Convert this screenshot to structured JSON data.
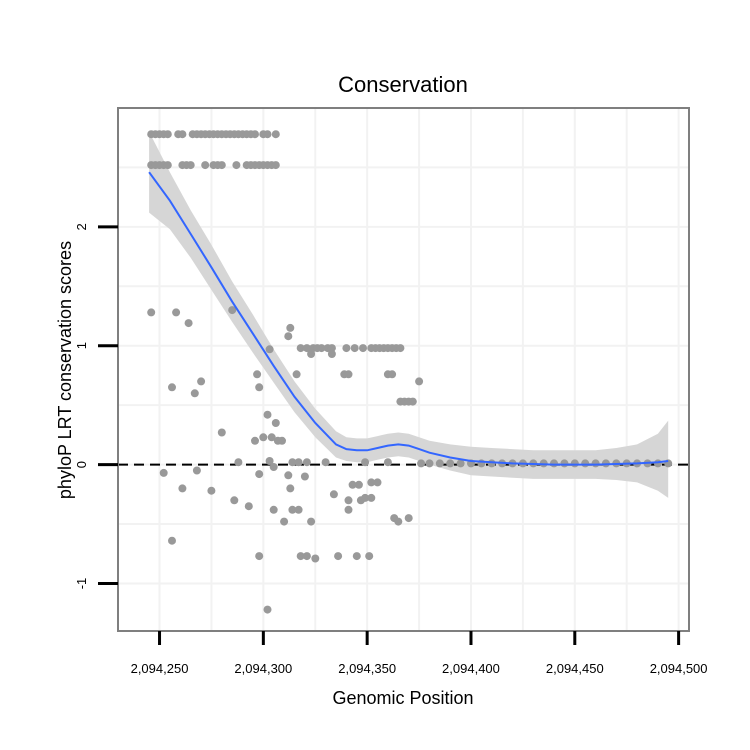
{
  "chart_data": {
    "type": "scatter",
    "title": "Conservation",
    "xlabel": "Genomic Position",
    "ylabel": "phyloP LRT conservation scores",
    "xlim": [
      2094230,
      2094505
    ],
    "ylim": [
      -1.4,
      3.0
    ],
    "x_ticks": [
      2094250,
      2094300,
      2094350,
      2094400,
      2094450,
      2094500
    ],
    "x_tick_labels": [
      "2,094,250",
      "2,094,300",
      "2,094,350",
      "2,094,400",
      "2,094,450",
      "2,094,500"
    ],
    "y_ticks": [
      -1,
      0,
      1,
      2
    ],
    "y_tick_labels": [
      "-1",
      "0",
      "1",
      "2"
    ],
    "grid": true,
    "reference_line": {
      "y": 0,
      "style": "dashed"
    },
    "colors": {
      "points": "#999999",
      "smooth": "#3366FF",
      "ribbon": "#d6d6d6",
      "panel_border": "#7f7f7f",
      "grid": "#f2f2f2"
    },
    "series": [
      {
        "name": "conservation scores",
        "kind": "points",
        "points": [
          [
            2094246,
            2.78
          ],
          [
            2094248,
            2.78
          ],
          [
            2094250,
            2.78
          ],
          [
            2094252,
            2.78
          ],
          [
            2094254,
            2.78
          ],
          [
            2094259,
            2.78
          ],
          [
            2094261,
            2.78
          ],
          [
            2094266,
            2.78
          ],
          [
            2094268,
            2.78
          ],
          [
            2094270,
            2.78
          ],
          [
            2094272,
            2.78
          ],
          [
            2094274,
            2.78
          ],
          [
            2094276,
            2.78
          ],
          [
            2094278,
            2.78
          ],
          [
            2094280,
            2.78
          ],
          [
            2094282,
            2.78
          ],
          [
            2094284,
            2.78
          ],
          [
            2094286,
            2.78
          ],
          [
            2094288,
            2.78
          ],
          [
            2094290,
            2.78
          ],
          [
            2094292,
            2.78
          ],
          [
            2094294,
            2.78
          ],
          [
            2094296,
            2.78
          ],
          [
            2094300,
            2.78
          ],
          [
            2094302,
            2.78
          ],
          [
            2094306,
            2.78
          ],
          [
            2094246,
            2.52
          ],
          [
            2094248,
            2.52
          ],
          [
            2094250,
            2.52
          ],
          [
            2094252,
            2.52
          ],
          [
            2094254,
            2.52
          ],
          [
            2094261,
            2.52
          ],
          [
            2094263,
            2.52
          ],
          [
            2094265,
            2.52
          ],
          [
            2094272,
            2.52
          ],
          [
            2094276,
            2.52
          ],
          [
            2094278,
            2.52
          ],
          [
            2094280,
            2.52
          ],
          [
            2094287,
            2.52
          ],
          [
            2094292,
            2.52
          ],
          [
            2094294,
            2.52
          ],
          [
            2094296,
            2.52
          ],
          [
            2094298,
            2.52
          ],
          [
            2094300,
            2.52
          ],
          [
            2094302,
            2.52
          ],
          [
            2094304,
            2.52
          ],
          [
            2094306,
            2.52
          ],
          [
            2094246,
            1.28
          ],
          [
            2094258,
            1.28
          ],
          [
            2094264,
            1.19
          ],
          [
            2094285,
            1.3
          ],
          [
            2094313,
            1.15
          ],
          [
            2094312,
            1.08
          ],
          [
            2094303,
            0.97
          ],
          [
            2094318,
            0.98
          ],
          [
            2094321,
            0.98
          ],
          [
            2094324,
            0.98
          ],
          [
            2094326,
            0.98
          ],
          [
            2094328,
            0.98
          ],
          [
            2094331,
            0.98
          ],
          [
            2094333,
            0.98
          ],
          [
            2094333,
            0.93
          ],
          [
            2094340,
            0.98
          ],
          [
            2094344,
            0.98
          ],
          [
            2094348,
            0.98
          ],
          [
            2094352,
            0.98
          ],
          [
            2094354,
            0.98
          ],
          [
            2094356,
            0.98
          ],
          [
            2094358,
            0.98
          ],
          [
            2094360,
            0.98
          ],
          [
            2094362,
            0.98
          ],
          [
            2094364,
            0.98
          ],
          [
            2094366,
            0.98
          ],
          [
            2094323,
            0.93
          ],
          [
            2094339,
            0.76
          ],
          [
            2094341,
            0.76
          ],
          [
            2094316,
            0.76
          ],
          [
            2094297,
            0.76
          ],
          [
            2094360,
            0.76
          ],
          [
            2094362,
            0.76
          ],
          [
            2094375,
            0.7
          ],
          [
            2094270,
            0.7
          ],
          [
            2094256,
            0.65
          ],
          [
            2094298,
            0.65
          ],
          [
            2094267,
            0.6
          ],
          [
            2094366,
            0.53
          ],
          [
            2094368,
            0.53
          ],
          [
            2094370,
            0.53
          ],
          [
            2094372,
            0.53
          ],
          [
            2094302,
            0.42
          ],
          [
            2094306,
            0.35
          ],
          [
            2094280,
            0.27
          ],
          [
            2094300,
            0.23
          ],
          [
            2094304,
            0.23
          ],
          [
            2094307,
            0.2
          ],
          [
            2094309,
            0.2
          ],
          [
            2094296,
            0.2
          ],
          [
            2094303,
            0.03
          ],
          [
            2094314,
            0.02
          ],
          [
            2094317,
            0.02
          ],
          [
            2094321,
            0.02
          ],
          [
            2094330,
            0.02
          ],
          [
            2094349,
            0.02
          ],
          [
            2094360,
            0.02
          ],
          [
            2094288,
            0.02
          ],
          [
            2094268,
            -0.05
          ],
          [
            2094305,
            -0.02
          ],
          [
            2094252,
            -0.07
          ],
          [
            2094298,
            -0.08
          ],
          [
            2094312,
            -0.09
          ],
          [
            2094320,
            -0.1
          ],
          [
            2094343,
            -0.17
          ],
          [
            2094346,
            -0.17
          ],
          [
            2094352,
            -0.15
          ],
          [
            2094355,
            -0.15
          ],
          [
            2094261,
            -0.2
          ],
          [
            2094275,
            -0.22
          ],
          [
            2094313,
            -0.2
          ],
          [
            2094334,
            -0.25
          ],
          [
            2094341,
            -0.3
          ],
          [
            2094347,
            -0.3
          ],
          [
            2094349,
            -0.28
          ],
          [
            2094352,
            -0.28
          ],
          [
            2094286,
            -0.3
          ],
          [
            2094293,
            -0.35
          ],
          [
            2094305,
            -0.38
          ],
          [
            2094314,
            -0.38
          ],
          [
            2094317,
            -0.38
          ],
          [
            2094341,
            -0.38
          ],
          [
            2094363,
            -0.45
          ],
          [
            2094365,
            -0.48
          ],
          [
            2094370,
            -0.45
          ],
          [
            2094310,
            -0.48
          ],
          [
            2094323,
            -0.48
          ],
          [
            2094256,
            -0.64
          ],
          [
            2094298,
            -0.77
          ],
          [
            2094318,
            -0.77
          ],
          [
            2094321,
            -0.77
          ],
          [
            2094325,
            -0.79
          ],
          [
            2094336,
            -0.77
          ],
          [
            2094345,
            -0.77
          ],
          [
            2094351,
            -0.77
          ],
          [
            2094302,
            -1.22
          ],
          [
            2094376,
            0.01
          ],
          [
            2094380,
            0.01
          ],
          [
            2094385,
            0.01
          ],
          [
            2094390,
            0.01
          ],
          [
            2094395,
            0.01
          ],
          [
            2094400,
            0.01
          ],
          [
            2094405,
            0.01
          ],
          [
            2094410,
            0.01
          ],
          [
            2094415,
            0.01
          ],
          [
            2094420,
            0.01
          ],
          [
            2094425,
            0.01
          ],
          [
            2094430,
            0.01
          ],
          [
            2094435,
            0.01
          ],
          [
            2094440,
            0.01
          ],
          [
            2094445,
            0.01
          ],
          [
            2094450,
            0.01
          ],
          [
            2094455,
            0.01
          ],
          [
            2094460,
            0.01
          ],
          [
            2094465,
            0.01
          ],
          [
            2094470,
            0.01
          ],
          [
            2094475,
            0.01
          ],
          [
            2094480,
            0.01
          ],
          [
            2094485,
            0.01
          ],
          [
            2094490,
            0.01
          ],
          [
            2094495,
            0.01
          ]
        ]
      },
      {
        "name": "loess smooth",
        "kind": "line",
        "x": [
          2094245,
          2094255,
          2094265,
          2094275,
          2094285,
          2094295,
          2094305,
          2094315,
          2094325,
          2094335,
          2094340,
          2094345,
          2094350,
          2094355,
          2094360,
          2094365,
          2094370,
          2094375,
          2094380,
          2094390,
          2094400,
          2094410,
          2094420,
          2094430,
          2094440,
          2094450,
          2094460,
          2094470,
          2094480,
          2094490,
          2094495
        ],
        "y": [
          2.46,
          2.22,
          1.94,
          1.66,
          1.37,
          1.1,
          0.83,
          0.57,
          0.35,
          0.17,
          0.13,
          0.12,
          0.12,
          0.14,
          0.16,
          0.17,
          0.16,
          0.13,
          0.1,
          0.06,
          0.03,
          0.02,
          0.01,
          0.005,
          0.0,
          0.0,
          0.0,
          0.005,
          0.01,
          0.02,
          0.03
        ],
        "lower": [
          2.12,
          1.98,
          1.74,
          1.47,
          1.2,
          0.94,
          0.69,
          0.44,
          0.23,
          0.06,
          0.03,
          0.02,
          0.02,
          0.04,
          0.06,
          0.07,
          0.06,
          0.03,
          0.0,
          -0.05,
          -0.09,
          -0.1,
          -0.11,
          -0.12,
          -0.12,
          -0.12,
          -0.12,
          -0.13,
          -0.15,
          -0.22,
          -0.28
        ],
        "upper": [
          2.8,
          2.46,
          2.14,
          1.85,
          1.54,
          1.26,
          0.97,
          0.7,
          0.47,
          0.28,
          0.23,
          0.22,
          0.22,
          0.24,
          0.26,
          0.27,
          0.26,
          0.23,
          0.2,
          0.17,
          0.15,
          0.14,
          0.13,
          0.12,
          0.12,
          0.12,
          0.12,
          0.14,
          0.17,
          0.26,
          0.37
        ]
      }
    ]
  }
}
